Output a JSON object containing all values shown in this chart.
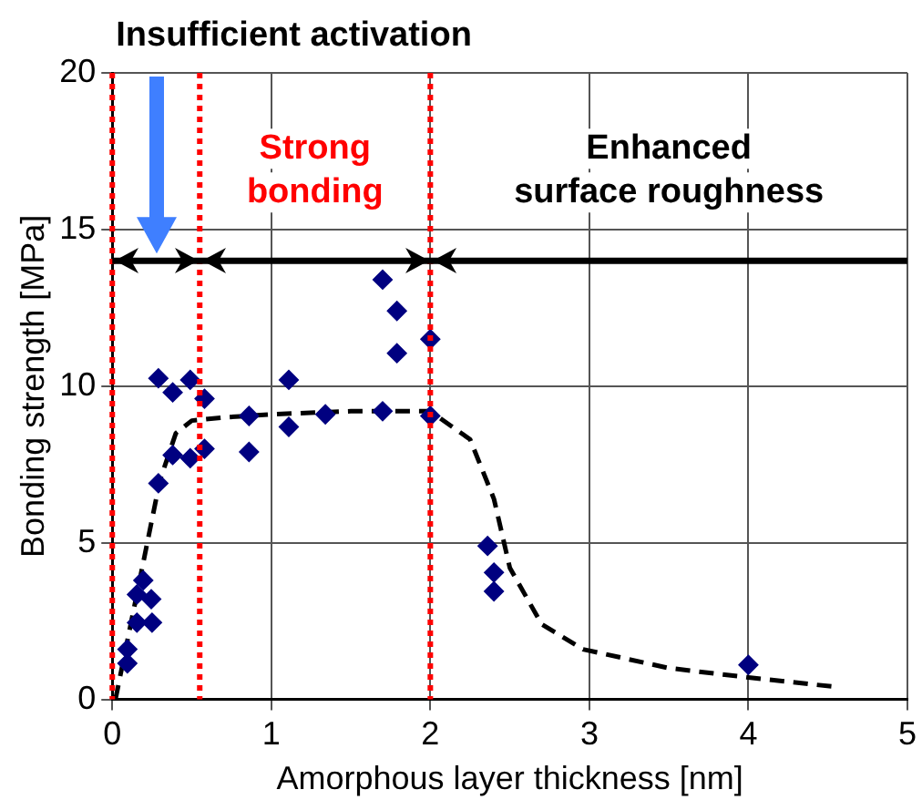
{
  "chart_data": {
    "type": "scatter",
    "xlabel": "Amorphous layer thickness [nm]",
    "ylabel": "Bonding strength [MPa]",
    "xlim": [
      0,
      5
    ],
    "xticks": [
      0,
      1,
      2,
      3,
      4,
      5
    ],
    "ylim": [
      0,
      20
    ],
    "yticks": [
      0,
      5,
      10,
      15,
      20
    ],
    "grid": true,
    "legend": false,
    "marker": "diamond",
    "series": [
      {
        "type": "scatter",
        "color": "#000080",
        "x": [
          0.095,
          0.095,
          0.155,
          0.25,
          0.155,
          0.245,
          0.195,
          0.29,
          0.38,
          0.49,
          0.58,
          0.29,
          0.38,
          0.49,
          0.58,
          0.86,
          0.86,
          1.11,
          1.11,
          1.34,
          1.7,
          1.7,
          1.79,
          1.79,
          2.0,
          2.0,
          2.36,
          2.4,
          2.4,
          4.0
        ],
        "values": [
          1.15,
          1.6,
          2.45,
          2.45,
          3.35,
          3.2,
          3.8,
          6.9,
          7.8,
          7.7,
          8.0,
          10.25,
          9.8,
          10.2,
          9.6,
          7.9,
          9.05,
          10.2,
          8.7,
          9.1,
          9.2,
          13.4,
          12.4,
          11.05,
          11.5,
          9.05,
          4.9,
          4.05,
          3.45,
          1.1
        ]
      },
      {
        "type": "line",
        "color": "#000000",
        "line_style": "dashed",
        "marker": "none",
        "x": [
          0.02,
          0.1,
          0.2,
          0.3,
          0.4,
          0.5,
          0.7,
          1.0,
          1.5,
          2.0,
          2.25,
          2.4,
          2.5,
          2.7,
          2.96,
          3.5,
          4.0,
          4.55
        ],
        "values": [
          0,
          2,
          4.5,
          7,
          8.5,
          8.9,
          9.0,
          9.1,
          9.2,
          9.2,
          8.3,
          6.4,
          4.2,
          2.4,
          1.6,
          1.0,
          0.7,
          0.4
        ]
      }
    ],
    "ref_lines": [
      {
        "axis": "x",
        "value": 0,
        "color": "#ff0000",
        "line_style": "dotted"
      },
      {
        "axis": "x",
        "value": 0.55,
        "color": "#ff0000",
        "line_style": "dotted"
      },
      {
        "axis": "x",
        "value": 2,
        "color": "#ff0000",
        "line_style": "dotted"
      },
      {
        "axis": "y",
        "value": 14,
        "color": "#000000",
        "line_style": "solid"
      }
    ],
    "annotations": [
      "Insufficient activation",
      "Strong bonding",
      "Enhanced surface roughness"
    ]
  }
}
